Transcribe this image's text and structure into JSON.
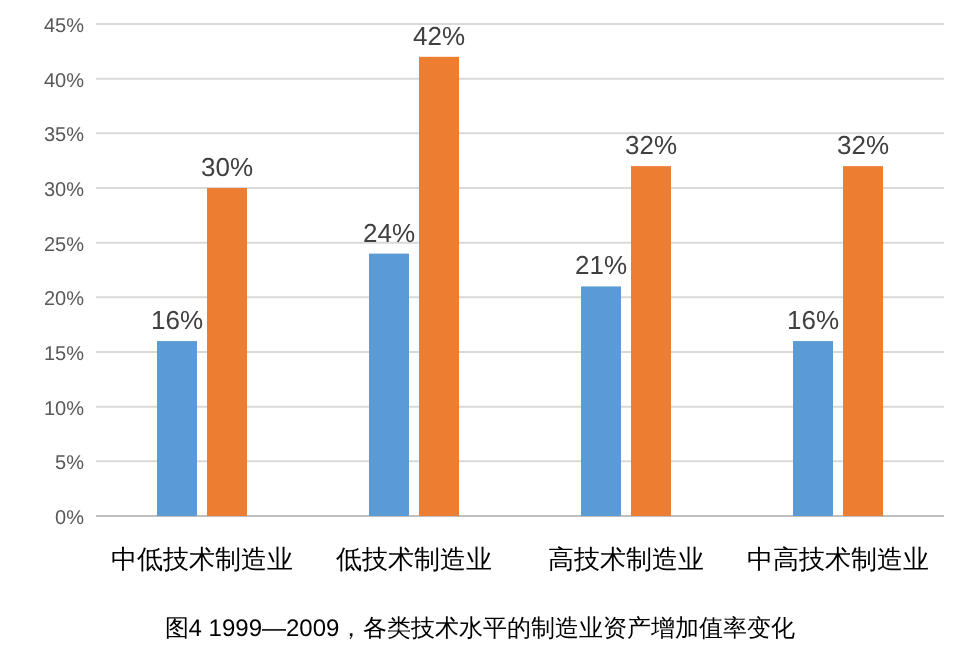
{
  "chart_data": {
    "type": "bar",
    "categories": [
      "中低技术制造业",
      "低技术制造业",
      "高技术制造业",
      "中高技术制造业"
    ],
    "series": [
      {
        "color": "#5b9bd5",
        "values": [
          16,
          24,
          21,
          16
        ],
        "value_labels": [
          "16%",
          "24%",
          "21%",
          "16%"
        ]
      },
      {
        "color": "#ed7d31",
        "values": [
          30,
          42,
          32,
          32
        ],
        "value_labels": [
          "30%",
          "42%",
          "32%",
          "32%"
        ]
      }
    ],
    "ylim": [
      0,
      45
    ],
    "yticks": [
      {
        "value": 0,
        "label": "0%"
      },
      {
        "value": 5,
        "label": "5%"
      },
      {
        "value": 10,
        "label": "10%"
      },
      {
        "value": 15,
        "label": "15%"
      },
      {
        "value": 20,
        "label": "20%"
      },
      {
        "value": 25,
        "label": "25%"
      },
      {
        "value": 30,
        "label": "30%"
      },
      {
        "value": 35,
        "label": "35%"
      },
      {
        "value": 40,
        "label": "40%"
      },
      {
        "value": 45,
        "label": "45%"
      }
    ],
    "grid": "y",
    "annotations": [
      "图4 1999—2009，各类技术水平的制造业资产增加值率变化"
    ]
  }
}
